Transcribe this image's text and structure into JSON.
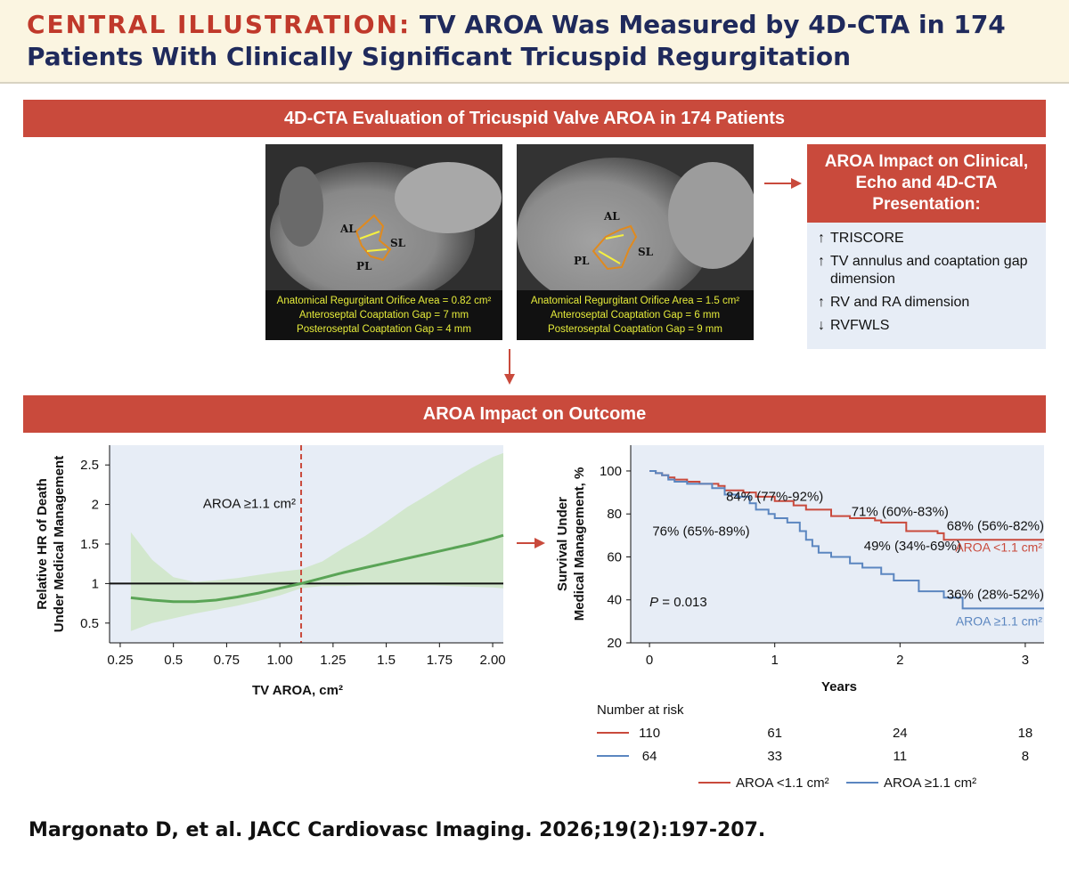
{
  "header": {
    "lead": "CENTRAL ILLUSTRATION:",
    "title": "TV AROA Was Measured by 4D-CTA in 174 Patients With Clinically Significant Tricuspid Regurgitation"
  },
  "banner_top": "4D-CTA Evaluation of Tricuspid Valve AROA in 174 Patients",
  "ct_images": [
    {
      "labels": {
        "al": "AL",
        "sl": "SL",
        "pl": "PL"
      },
      "caption": [
        "Anatomical Regurgitant Orifice Area = 0.82 cm²",
        "Anteroseptal Coaptation Gap = 7 mm",
        "Posteroseptal Coaptation Gap = 4 mm"
      ]
    },
    {
      "labels": {
        "al": "AL",
        "sl": "SL",
        "pl": "PL"
      },
      "caption": [
        "Anatomical Regurgitant Orifice Area = 1.5 cm²",
        "Anteroseptal Coaptation Gap = 6 mm",
        "Posteroseptal Coaptation Gap = 9 mm"
      ]
    }
  ],
  "impact": {
    "title": "AROA Impact on Clinical, Echo and 4D-CTA Presentation:",
    "items": [
      {
        "arrow": "↑",
        "text": "TRISCORE"
      },
      {
        "arrow": "↑",
        "text": "TV annulus and coaptation gap dimension"
      },
      {
        "arrow": "↑",
        "text": "RV and RA dimension"
      },
      {
        "arrow": "↓",
        "text": "RVFWLS"
      }
    ]
  },
  "banner_bottom": "AROA Impact on Outcome",
  "colors": {
    "red": "#c94a3c",
    "blue": "#5b86c0",
    "green": "#5aa456",
    "band": "#cfe5c9",
    "plot_bg": "#e7edf6"
  },
  "chart_data": [
    {
      "type": "line",
      "xlabel": "TV AROA, cm²",
      "ylabel": [
        "Relative HR of Death",
        "Under Medical Management"
      ],
      "xlim": [
        0.2,
        2.05
      ],
      "ylim": [
        0.25,
        2.75
      ],
      "xticks": [
        "0.25",
        "0.5",
        "0.75",
        "1.00",
        "1.25",
        "1.5",
        "1.75",
        "2.00"
      ],
      "yticks": [
        "0.5",
        "1",
        "1.5",
        "2",
        "2.5"
      ],
      "reference_line": {
        "y": 1
      },
      "cutoff": {
        "x": 1.1,
        "label": "AROA ≥1.1 cm²"
      },
      "series": [
        {
          "x": [
            0.3,
            0.4,
            0.5,
            0.6,
            0.7,
            0.8,
            0.9,
            1.0,
            1.1,
            1.2,
            1.3,
            1.4,
            1.5,
            1.6,
            1.7,
            1.8,
            1.9,
            2.0,
            2.05
          ],
          "values": [
            0.82,
            0.79,
            0.77,
            0.77,
            0.79,
            0.83,
            0.88,
            0.94,
            1.0,
            1.07,
            1.14,
            1.2,
            1.26,
            1.32,
            1.38,
            1.44,
            1.5,
            1.57,
            1.61
          ],
          "lower": [
            0.4,
            0.5,
            0.56,
            0.62,
            0.67,
            0.72,
            0.78,
            0.85,
            0.94,
            0.97,
            0.97,
            0.98,
            0.98,
            0.98,
            0.98,
            0.97,
            0.96,
            0.95,
            0.94
          ],
          "upper": [
            1.65,
            1.3,
            1.08,
            1.02,
            1.04,
            1.07,
            1.11,
            1.15,
            1.18,
            1.28,
            1.45,
            1.6,
            1.78,
            1.97,
            2.13,
            2.3,
            2.46,
            2.6,
            2.65
          ]
        }
      ]
    },
    {
      "type": "line",
      "xlabel": "Years",
      "ylabel": [
        "Survival Under",
        "Medical Management, %"
      ],
      "xlim": [
        -0.15,
        3.15
      ],
      "ylim": [
        20,
        112
      ],
      "xticks": [
        "0",
        "1",
        "2",
        "3"
      ],
      "yticks": [
        "20",
        "40",
        "60",
        "80",
        "100"
      ],
      "p_value": {
        "prefix": "P",
        "text": " = 0.013"
      },
      "series": [
        {
          "name": "AROA <1.1 cm²",
          "x": [
            0,
            0.05,
            0.1,
            0.15,
            0.2,
            0.3,
            0.4,
            0.55,
            0.6,
            0.75,
            0.85,
            1.0,
            1.15,
            1.25,
            1.45,
            1.6,
            1.8,
            1.85,
            2.05,
            2.3,
            2.35,
            3.15
          ],
          "values": [
            100,
            99,
            98,
            97,
            96,
            95,
            94,
            93,
            91,
            90,
            88,
            86,
            84,
            82,
            79,
            78,
            77,
            76,
            72,
            71,
            68,
            68
          ],
          "annotations": [
            "84% (77%-92%)",
            "71% (60%-83%)",
            "68% (56%-82%)"
          ]
        },
        {
          "name": "AROA ≥1.1 cm²",
          "x": [
            0,
            0.05,
            0.1,
            0.15,
            0.2,
            0.3,
            0.5,
            0.6,
            0.7,
            0.8,
            0.85,
            0.95,
            1.0,
            1.1,
            1.2,
            1.25,
            1.3,
            1.35,
            1.45,
            1.6,
            1.7,
            1.85,
            1.95,
            2.1,
            2.15,
            2.35,
            2.5,
            3.15
          ],
          "values": [
            100,
            99,
            98,
            96,
            95,
            94,
            92,
            89,
            88,
            85,
            82,
            80,
            78,
            76,
            72,
            68,
            65,
            62,
            60,
            57,
            55,
            52,
            49,
            49,
            44,
            41,
            36,
            36
          ],
          "annotations": [
            "76% (65%-89%)",
            "49% (34%-69%)",
            "36% (28%-52%)"
          ]
        }
      ],
      "number_at_risk": {
        "title": "Number at risk",
        "rows": [
          [
            110,
            61,
            24,
            18
          ],
          [
            64,
            33,
            11,
            8
          ]
        ]
      }
    }
  ],
  "citation": "Margonato D, et al. JACC Cardiovasc Imaging. 2026;19(2):197-207."
}
